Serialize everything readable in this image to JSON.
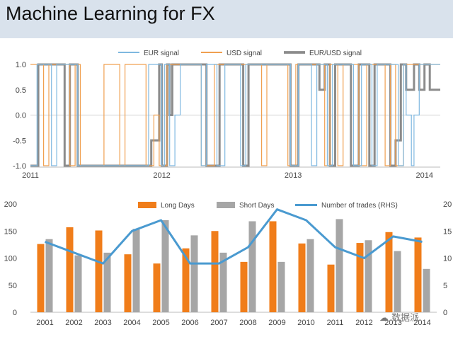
{
  "slide": {
    "title": "Machine Learning for FX",
    "watermark_text": "数据派"
  },
  "chart_data": [
    {
      "type": "line",
      "title": "",
      "x_tick_labels": [
        "2011",
        "2012",
        "2013",
        "2014"
      ],
      "y_tick_labels": [
        "1.0",
        "0.5",
        "0.0",
        "-0.5",
        "-1.0"
      ],
      "ylim": [
        -1.0,
        1.0
      ],
      "xlim": [
        2011.0,
        2014.12
      ],
      "legend": {
        "placement": "top"
      },
      "series": [
        {
          "name": "EUR signal",
          "color": "#7fb8e0",
          "points": [
            [
              2011.0,
              -1
            ],
            [
              2011.05,
              -1
            ],
            [
              2011.05,
              1
            ],
            [
              2011.16,
              1
            ],
            [
              2011.16,
              -1
            ],
            [
              2011.2,
              -1
            ],
            [
              2011.2,
              1
            ],
            [
              2011.36,
              1
            ],
            [
              2011.36,
              -1
            ],
            [
              2011.9,
              -1
            ],
            [
              2011.9,
              1
            ],
            [
              2012.0,
              1
            ],
            [
              2012.0,
              -1
            ],
            [
              2012.02,
              -1
            ],
            [
              2012.02,
              1
            ],
            [
              2012.06,
              1
            ],
            [
              2012.06,
              -1
            ],
            [
              2012.1,
              -1
            ],
            [
              2012.1,
              0
            ],
            [
              2012.14,
              0
            ],
            [
              2012.14,
              1
            ],
            [
              2012.3,
              1
            ],
            [
              2012.3,
              -1
            ],
            [
              2012.34,
              -1
            ],
            [
              2012.34,
              1
            ],
            [
              2012.42,
              1
            ],
            [
              2012.42,
              -1
            ],
            [
              2012.48,
              -1
            ],
            [
              2012.48,
              1
            ],
            [
              2012.6,
              1
            ],
            [
              2012.6,
              -1
            ],
            [
              2012.64,
              -1
            ],
            [
              2012.64,
              1
            ],
            [
              2012.98,
              1
            ],
            [
              2012.98,
              -1
            ],
            [
              2013.04,
              -1
            ],
            [
              2013.04,
              1
            ],
            [
              2013.14,
              1
            ],
            [
              2013.14,
              -1
            ],
            [
              2013.18,
              -1
            ],
            [
              2013.18,
              1
            ],
            [
              2013.26,
              1
            ],
            [
              2013.26,
              -1
            ],
            [
              2013.3,
              -1
            ],
            [
              2013.3,
              1
            ],
            [
              2013.46,
              1
            ],
            [
              2013.46,
              -1
            ],
            [
              2013.52,
              -1
            ],
            [
              2013.52,
              1
            ],
            [
              2013.6,
              1
            ],
            [
              2013.6,
              -1
            ],
            [
              2013.64,
              -1
            ],
            [
              2013.64,
              1
            ],
            [
              2013.8,
              1
            ],
            [
              2013.8,
              -1
            ],
            [
              2013.84,
              -1
            ],
            [
              2013.84,
              1
            ],
            [
              2013.86,
              1
            ],
            [
              2013.86,
              0
            ],
            [
              2013.9,
              0
            ],
            [
              2013.9,
              -1
            ],
            [
              2013.92,
              -1
            ],
            [
              2013.92,
              0
            ],
            [
              2013.96,
              0
            ],
            [
              2013.96,
              1
            ],
            [
              2014.12,
              1
            ]
          ]
        },
        {
          "name": "USD signal",
          "color": "#f0a050",
          "points": [
            [
              2011.0,
              1
            ],
            [
              2011.1,
              1
            ],
            [
              2011.1,
              -1
            ],
            [
              2011.14,
              -1
            ],
            [
              2011.14,
              1
            ],
            [
              2011.3,
              1
            ],
            [
              2011.3,
              -1
            ],
            [
              2011.34,
              -1
            ],
            [
              2011.34,
              1
            ],
            [
              2011.38,
              1
            ],
            [
              2011.38,
              -1
            ],
            [
              2011.56,
              -1
            ],
            [
              2011.56,
              1
            ],
            [
              2011.68,
              1
            ],
            [
              2011.68,
              -1
            ],
            [
              2011.72,
              -1
            ],
            [
              2011.72,
              1
            ],
            [
              2011.88,
              1
            ],
            [
              2011.88,
              -1
            ],
            [
              2011.94,
              -1
            ],
            [
              2011.94,
              0
            ],
            [
              2011.98,
              0
            ],
            [
              2011.98,
              -1
            ],
            [
              2012.04,
              -1
            ],
            [
              2012.04,
              1
            ],
            [
              2012.3,
              1
            ],
            [
              2012.3,
              -1
            ],
            [
              2012.4,
              -1
            ],
            [
              2012.4,
              1
            ],
            [
              2012.76,
              1
            ],
            [
              2012.76,
              -1
            ],
            [
              2012.8,
              -1
            ],
            [
              2012.8,
              1
            ],
            [
              2012.96,
              1
            ],
            [
              2012.96,
              -1
            ],
            [
              2013.02,
              -1
            ],
            [
              2013.02,
              1
            ],
            [
              2013.24,
              1
            ],
            [
              2013.24,
              -1
            ],
            [
              2013.28,
              -1
            ],
            [
              2013.28,
              1
            ],
            [
              2013.34,
              1
            ],
            [
              2013.34,
              -1
            ],
            [
              2013.38,
              -1
            ],
            [
              2013.38,
              1
            ],
            [
              2013.5,
              1
            ],
            [
              2013.5,
              -1
            ],
            [
              2013.56,
              -1
            ],
            [
              2013.56,
              1
            ],
            [
              2013.7,
              1
            ],
            [
              2013.7,
              -1
            ],
            [
              2013.74,
              -1
            ],
            [
              2013.74,
              1
            ],
            [
              2013.78,
              1
            ],
            [
              2013.78,
              -1
            ],
            [
              2013.84,
              -1
            ],
            [
              2013.84,
              1
            ],
            [
              2014.12,
              1
            ]
          ]
        },
        {
          "name": "EUR/USD signal",
          "color": "#8c8c8c",
          "points": [
            [
              2011.0,
              -1
            ],
            [
              2011.06,
              -1
            ],
            [
              2011.06,
              1
            ],
            [
              2011.26,
              1
            ],
            [
              2011.26,
              -1
            ],
            [
              2011.3,
              -1
            ],
            [
              2011.3,
              1
            ],
            [
              2011.36,
              1
            ],
            [
              2011.36,
              -1
            ],
            [
              2011.92,
              -1
            ],
            [
              2011.92,
              -0.5
            ],
            [
              2011.98,
              -0.5
            ],
            [
              2011.98,
              1
            ],
            [
              2012.0,
              1
            ],
            [
              2012.0,
              -1
            ],
            [
              2012.04,
              -1
            ],
            [
              2012.04,
              1
            ],
            [
              2012.06,
              1
            ],
            [
              2012.06,
              0
            ],
            [
              2012.08,
              0
            ],
            [
              2012.08,
              1
            ],
            [
              2012.34,
              1
            ],
            [
              2012.34,
              -1
            ],
            [
              2012.44,
              -1
            ],
            [
              2012.44,
              1
            ],
            [
              2012.62,
              1
            ],
            [
              2012.62,
              -1
            ],
            [
              2012.66,
              -1
            ],
            [
              2012.66,
              1
            ],
            [
              2012.98,
              1
            ],
            [
              2012.98,
              -1
            ],
            [
              2013.04,
              -1
            ],
            [
              2013.04,
              1
            ],
            [
              2013.2,
              1
            ],
            [
              2013.2,
              0.5
            ],
            [
              2013.24,
              0.5
            ],
            [
              2013.24,
              1
            ],
            [
              2013.28,
              1
            ],
            [
              2013.28,
              -1
            ],
            [
              2013.32,
              -1
            ],
            [
              2013.32,
              1
            ],
            [
              2013.44,
              1
            ],
            [
              2013.44,
              -1
            ],
            [
              2013.5,
              -1
            ],
            [
              2013.5,
              1
            ],
            [
              2013.58,
              1
            ],
            [
              2013.58,
              -1
            ],
            [
              2013.62,
              -1
            ],
            [
              2013.62,
              1
            ],
            [
              2013.74,
              1
            ],
            [
              2013.74,
              -1
            ],
            [
              2013.78,
              -1
            ],
            [
              2013.78,
              -0.5
            ],
            [
              2013.82,
              -0.5
            ],
            [
              2013.82,
              1
            ],
            [
              2013.86,
              1
            ],
            [
              2013.86,
              0.5
            ],
            [
              2013.92,
              0.5
            ],
            [
              2013.92,
              1
            ],
            [
              2013.96,
              1
            ],
            [
              2013.96,
              0.5
            ],
            [
              2014.0,
              0.5
            ],
            [
              2014.0,
              1
            ],
            [
              2014.04,
              1
            ],
            [
              2014.04,
              0.5
            ],
            [
              2014.12,
              0.5
            ]
          ]
        }
      ]
    },
    {
      "type": "bar",
      "title": "",
      "categories": [
        "2001",
        "2002",
        "2003",
        "2004",
        "2005",
        "2006",
        "2007",
        "2008",
        "2009",
        "2010",
        "2011",
        "2012",
        "2013",
        "2014"
      ],
      "y_tick_labels": [
        "200",
        "150",
        "100",
        "50",
        "0"
      ],
      "y2_tick_labels": [
        "20",
        "15",
        "10",
        "5",
        "0"
      ],
      "ylim": [
        0,
        200
      ],
      "y2lim": [
        0,
        20
      ],
      "legend": {
        "placement": "top"
      },
      "series": [
        {
          "name": "Long Days",
          "color": "#f07d1a",
          "values": [
            126,
            157,
            151,
            107,
            90,
            118,
            150,
            93,
            168,
            127,
            88,
            128,
            148,
            138
          ]
        },
        {
          "name": "Short Days",
          "color": "#a6a6a6",
          "values": [
            135,
            105,
            110,
            154,
            170,
            142,
            110,
            168,
            93,
            135,
            172,
            133,
            113,
            80
          ]
        },
        {
          "name": "Number of trades (RHS)",
          "color": "#4a9ad0",
          "axis": "right",
          "values": [
            13,
            11,
            9,
            15,
            17,
            9,
            9,
            12,
            19,
            17,
            12,
            10,
            14,
            13
          ]
        }
      ]
    }
  ]
}
